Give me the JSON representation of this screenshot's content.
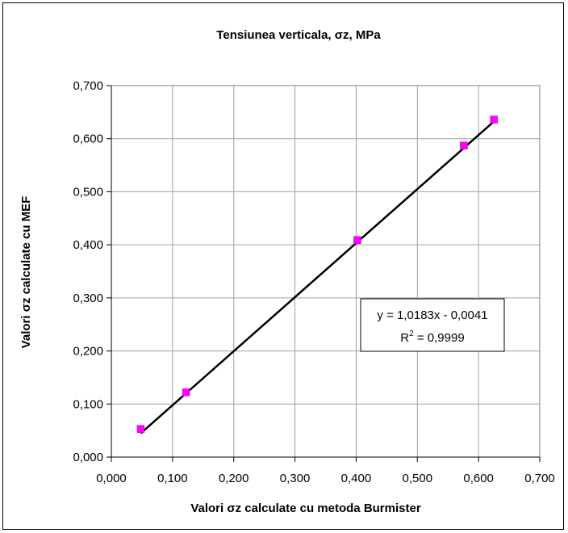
{
  "chart_data": {
    "type": "scatter",
    "title": "Tensiunea verticala, σz, MPa",
    "xlabel": "Valori σz calculate cu metoda Burmister",
    "ylabel": "Valori σz calculate cu MEF",
    "xlim": [
      0,
      0.7
    ],
    "ylim": [
      0,
      0.7
    ],
    "x_ticks": [
      "0,000",
      "0,100",
      "0,200",
      "0,300",
      "0,400",
      "0,500",
      "0,600",
      "0,700"
    ],
    "y_ticks": [
      "0,000",
      "0,100",
      "0,200",
      "0,300",
      "0,400",
      "0,500",
      "0,600",
      "0,700"
    ],
    "grid": true,
    "legend": "none",
    "series": [
      {
        "marker": "square",
        "color": "#ff00ff",
        "x": [
          0.048,
          0.122,
          0.402,
          0.576,
          0.625
        ],
        "y": [
          0.053,
          0.122,
          0.409,
          0.587,
          0.636
        ]
      }
    ],
    "trendline": {
      "type": "linear",
      "slope": 1.0183,
      "intercept": -0.0041,
      "x_range": [
        0.048,
        0.625
      ],
      "color": "#000000",
      "equation_text": "y = 1,0183x - 0,0041",
      "r2_label": "R",
      "r2_exp": "2",
      "r2_value_text": " = 0,9999"
    }
  }
}
